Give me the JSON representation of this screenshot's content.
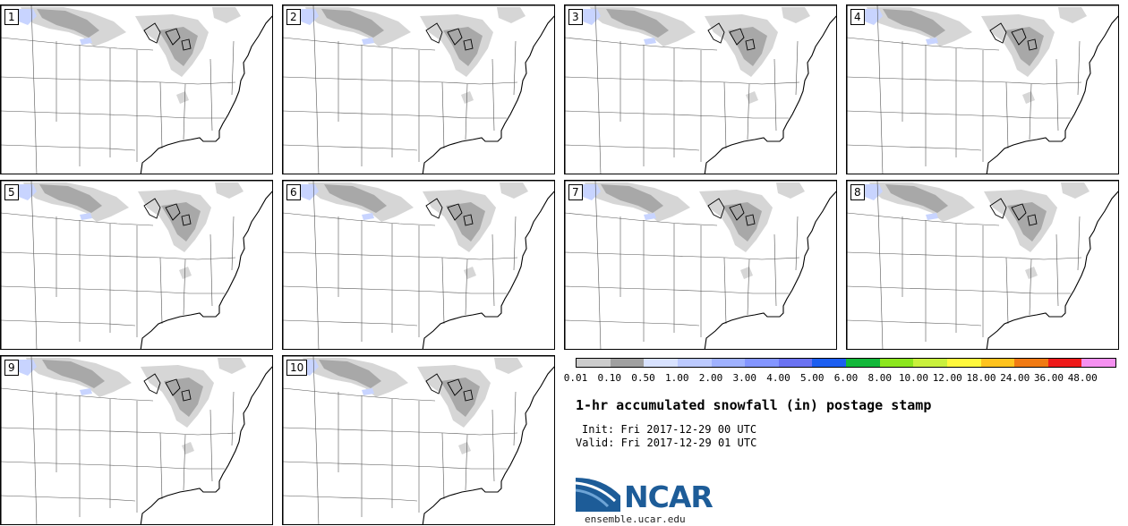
{
  "panels": [
    {
      "label": "1"
    },
    {
      "label": "2"
    },
    {
      "label": "3"
    },
    {
      "label": "4"
    },
    {
      "label": "5"
    },
    {
      "label": "6"
    },
    {
      "label": "7"
    },
    {
      "label": "8"
    },
    {
      "label": "9"
    },
    {
      "label": "10"
    }
  ],
  "colorbar": {
    "ticks": [
      "0.01",
      "0.10",
      "0.50",
      "1.00",
      "2.00",
      "3.00",
      "4.00",
      "5.00",
      "6.00",
      "8.00",
      "10.00",
      "12.00",
      "18.00",
      "24.00",
      "36.00",
      "48.00"
    ],
    "colors": [
      "#cccccc",
      "#a0a0a0",
      "#d8e2ff",
      "#bccaff",
      "#9fb1ff",
      "#8395ff",
      "#6a72f2",
      "#1c5ef0",
      "#13b83a",
      "#8ce61e",
      "#c9f03c",
      "#fff83c",
      "#ffc31e",
      "#f07a13",
      "#ee1a1a",
      "#f590f0"
    ]
  },
  "title": "1-hr accumulated snowfall (in) postage stamp",
  "init": "Init: Fri 2017-12-29 00 UTC",
  "valid": "Valid: Fri 2017-12-29 01 UTC",
  "logo": {
    "text": "NCAR",
    "color": "#1d5c98"
  },
  "site": "ensemble.ucar.edu"
}
